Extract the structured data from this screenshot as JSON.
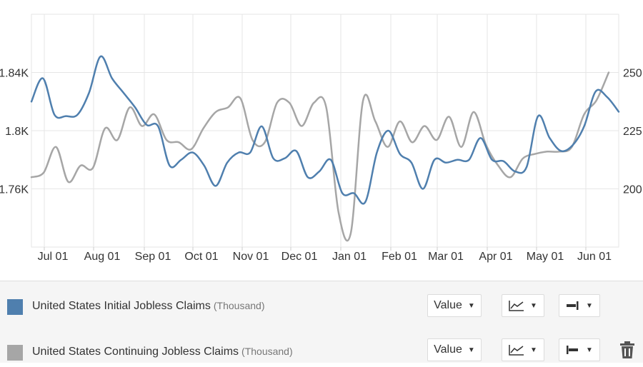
{
  "chart_data": {
    "type": "line",
    "x_ticks": [
      "Jul 01",
      "Aug 01",
      "Sep 01",
      "Oct 01",
      "Nov 01",
      "Dec 01",
      "Jan 01",
      "Feb 01",
      "Mar 01",
      "Apr 01",
      "May 01",
      "Jun 01"
    ],
    "left_axis": {
      "ticks": [
        "1.76K",
        "1.8K",
        "1.84K"
      ],
      "values": [
        1760,
        1800,
        1840
      ],
      "range": [
        1720,
        1880
      ]
    },
    "right_axis": {
      "ticks": [
        "200",
        "225",
        "250"
      ],
      "values": [
        200,
        225,
        250
      ],
      "range": [
        175,
        275
      ]
    },
    "grid": true,
    "series": [
      {
        "name": "United States Initial Jobless Claims",
        "unit": "(Thousand)",
        "axis": "left",
        "color": "#4f7fae",
        "values": [
          1820,
          1836,
          1811,
          1810,
          1811,
          1826,
          1851,
          1836,
          1826,
          1816,
          1804,
          1803,
          1776,
          1780,
          1785,
          1776,
          1762,
          1778,
          1785,
          1785,
          1803,
          1781,
          1781,
          1786,
          1768,
          1772,
          1780,
          1757,
          1757,
          1751,
          1785,
          1800,
          1784,
          1778,
          1760,
          1780,
          1778,
          1780,
          1780,
          1795,
          1780,
          1779,
          1772,
          1775,
          1810,
          1795,
          1786,
          1790,
          1803,
          1827,
          1823,
          1813
        ]
      },
      {
        "name": "United States Continuing Jobless Claims",
        "unit": "(Thousand)",
        "axis": "right",
        "color": "#a6a6a6",
        "values": [
          205,
          207,
          218,
          203,
          210,
          209,
          226,
          221,
          235,
          227,
          232,
          221,
          220,
          217,
          226,
          233,
          235,
          239,
          221,
          220,
          237,
          237,
          227,
          237,
          235,
          190,
          181,
          238,
          229,
          218,
          229,
          220,
          227,
          221,
          231,
          218,
          233,
          219,
          210,
          205,
          213,
          215,
          216,
          216,
          218,
          232,
          238,
          250
        ]
      }
    ]
  },
  "legend": [
    {
      "label": "United States Initial Jobless Claims",
      "unit": "(Thousand)",
      "color": "#4f7fae",
      "value_label": "Value",
      "delete_icon": false
    },
    {
      "label": "United States Continuing Jobless Claims",
      "unit": "(Thousand)",
      "color": "#a6a6a6",
      "value_label": "Value",
      "delete_icon": true
    }
  ],
  "icons": [
    "line-chart-icon",
    "axis-side-icon",
    "caret-down-icon",
    "trash-icon"
  ]
}
